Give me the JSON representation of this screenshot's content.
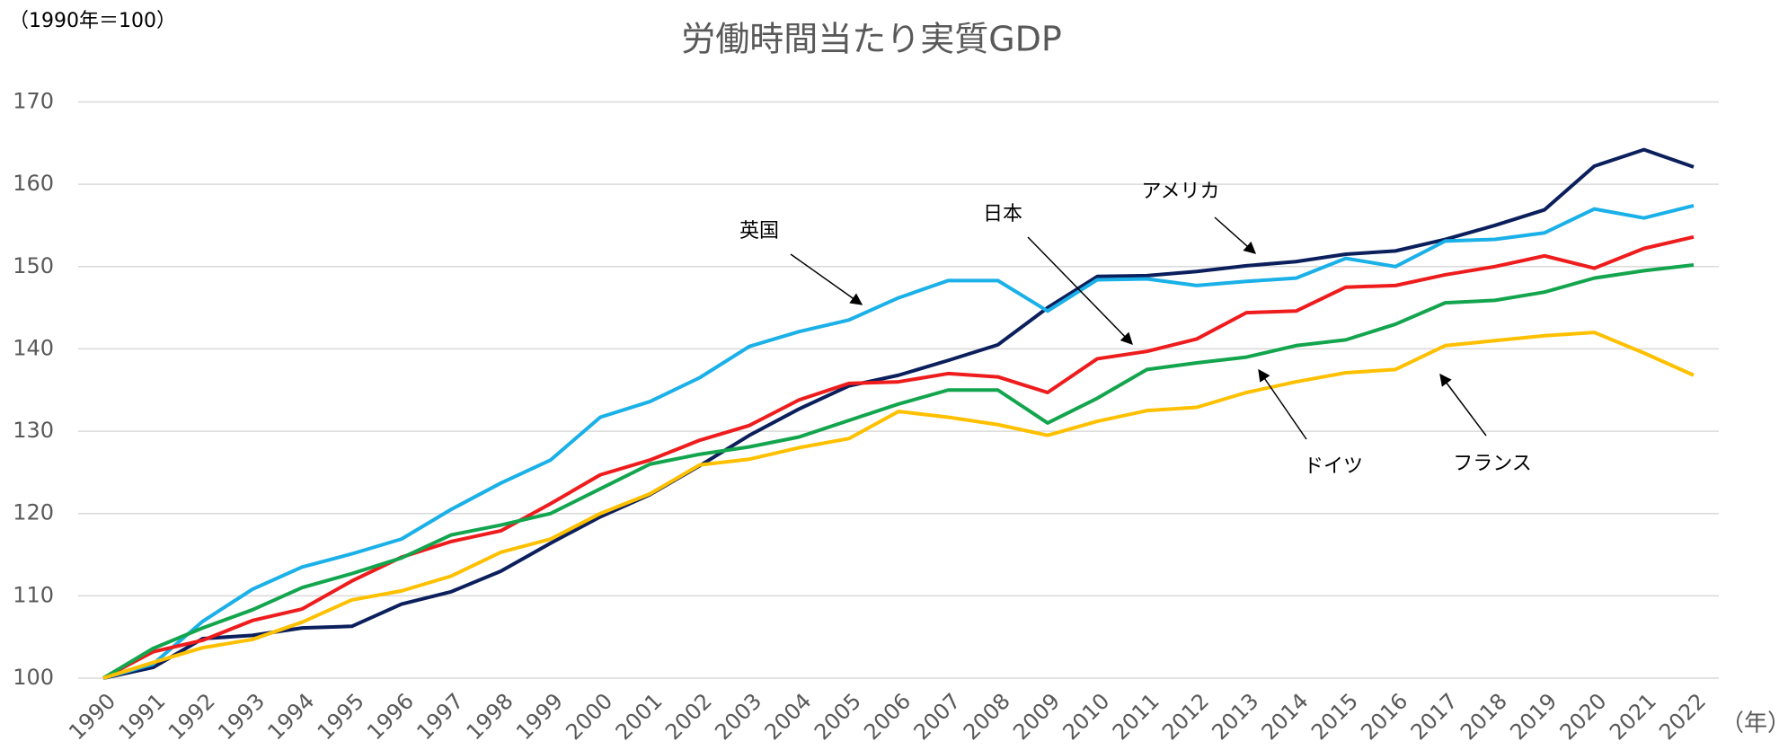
{
  "chart_data": {
    "type": "line",
    "title": "労働時間当たり実質GDP",
    "y_axis_label": "（1990年＝100）",
    "x_axis_label": "（年）",
    "categories": [
      "1990",
      "1991",
      "1992",
      "1993",
      "1994",
      "1995",
      "1996",
      "1997",
      "1998",
      "1999",
      "2000",
      "2001",
      "2002",
      "2003",
      "2004",
      "2005",
      "2006",
      "2007",
      "2008",
      "2009",
      "2010",
      "2011",
      "2012",
      "2013",
      "2014",
      "2015",
      "2016",
      "2017",
      "2018",
      "2019",
      "2020",
      "2021",
      "2022"
    ],
    "ylim": [
      100,
      170
    ],
    "yticks": [
      100,
      110,
      120,
      130,
      140,
      150,
      160,
      170
    ],
    "grid": true,
    "series": [
      {
        "name": "アメリカ",
        "color": "#0b1f5c",
        "values": [
          100,
          101.3,
          104.8,
          105.2,
          106.1,
          106.3,
          109,
          110.5,
          113,
          116.4,
          119.6,
          122.3,
          125.8,
          129.5,
          132.7,
          135.5,
          136.8,
          138.6,
          140.5,
          145,
          148.8,
          148.9,
          149.4,
          150.1,
          150.6,
          151.5,
          151.9,
          153.3,
          155,
          156.9,
          162.2,
          164.2,
          162.1
        ]
      },
      {
        "name": "英国",
        "color": "#1ab0e8",
        "values": [
          100,
          101.7,
          106.9,
          110.8,
          113.5,
          115.1,
          116.9,
          120.5,
          123.7,
          126.5,
          131.7,
          133.6,
          136.5,
          140.3,
          142.1,
          143.5,
          146.2,
          148.3,
          148.3,
          144.6,
          148.4,
          148.5,
          147.7,
          148.2,
          148.6,
          151,
          150,
          153.1,
          153.3,
          154.1,
          157,
          155.9,
          157.4
        ]
      },
      {
        "name": "日本",
        "color": "#ee1c1c",
        "values": [
          100,
          103.2,
          104.6,
          107,
          108.4,
          111.8,
          114.7,
          116.6,
          117.9,
          121.2,
          124.7,
          126.5,
          128.9,
          130.7,
          133.8,
          135.8,
          136,
          137,
          136.6,
          134.7,
          138.8,
          139.7,
          141.2,
          144.4,
          144.6,
          147.5,
          147.7,
          149,
          150,
          151.3,
          149.8,
          152.2,
          153.6
        ]
      },
      {
        "name": "ドイツ",
        "color": "#13a54e",
        "values": [
          100,
          103.6,
          106.1,
          108.3,
          111,
          112.7,
          114.6,
          117.4,
          118.6,
          120,
          123,
          126,
          127.2,
          128.1,
          129.3,
          131.3,
          133.3,
          135,
          135,
          131,
          134,
          137.5,
          138.3,
          139,
          140.4,
          141.1,
          143,
          145.6,
          145.9,
          146.9,
          148.6,
          149.5,
          150.2
        ]
      },
      {
        "name": "フランス",
        "color": "#ffc000",
        "values": [
          100,
          101.9,
          103.7,
          104.7,
          106.8,
          109.5,
          110.6,
          112.4,
          115.3,
          116.9,
          120,
          122.4,
          125.9,
          126.6,
          128,
          129.1,
          132.4,
          131.7,
          130.8,
          129.5,
          131.2,
          132.5,
          132.9,
          134.7,
          136,
          137.1,
          137.5,
          140.4,
          141,
          141.6,
          142,
          139.5,
          136.8
        ]
      }
    ]
  }
}
